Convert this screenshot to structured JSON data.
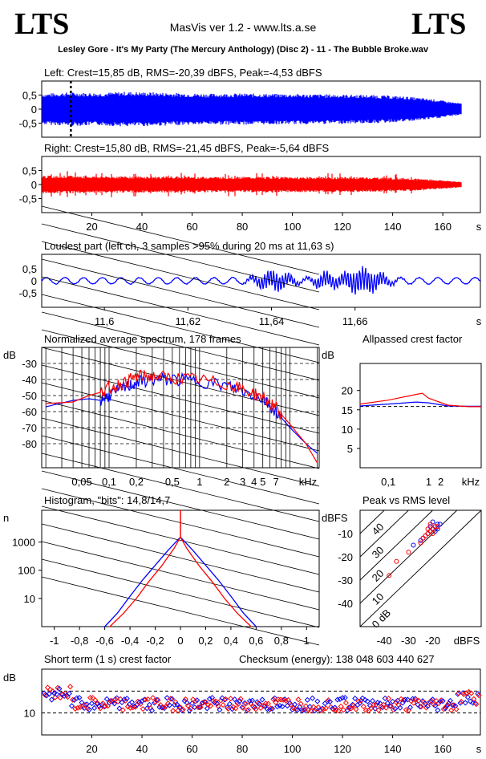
{
  "header": {
    "logo_left": "LTS",
    "logo_right": "LTS",
    "app_title": "MasVis ver 1.2 - www.lts.a.se",
    "file_name": "Lesley Gore - It's My Party (The Mercury Anthology) (Disc 2) - 11 - The Bubble Broke.wav"
  },
  "colors": {
    "left": "#0000ff",
    "right": "#ff0000"
  },
  "chart_data": [
    {
      "id": "left_waveform",
      "type": "area",
      "title": "Left: Crest=15,85 dB, RMS=-20,39 dBFS, Peak=-4,53 dBFS",
      "y_ticks": [
        "0,5",
        "0",
        "-0,5"
      ],
      "ylim": [
        -1,
        1
      ],
      "envelope": [
        0.55,
        0.6,
        0.58,
        0.62,
        0.6,
        0.57,
        0.55,
        0.56,
        0.55,
        0.54,
        0.53,
        0.52,
        0.5,
        0.45,
        0.35,
        0.2
      ],
      "marker_time_s": 11.63
    },
    {
      "id": "right_waveform",
      "type": "area",
      "title": "Right: Crest=15,80 dB, RMS=-21,45 dBFS, Peak=-5,64 dBFS",
      "y_ticks": [
        "0,5",
        "0",
        "-0,5"
      ],
      "ylim": [
        -1,
        1
      ],
      "envelope": [
        0.32,
        0.32,
        0.3,
        0.3,
        0.29,
        0.29,
        0.28,
        0.28,
        0.28,
        0.27,
        0.27,
        0.27,
        0.26,
        0.24,
        0.18,
        0.1
      ],
      "x_ticks": [
        "20",
        "40",
        "60",
        "80",
        "100",
        "120",
        "140",
        "160",
        "s"
      ],
      "xlim": [
        0,
        175
      ]
    },
    {
      "id": "loudest_part",
      "type": "line",
      "title": "Loudest part (left  ch, 3 samples >95% during 20 ms at 11,63 s)",
      "y_ticks": [
        "0,5",
        "0",
        "-0,5"
      ],
      "x_ticks": [
        "11,6",
        "11,62",
        "11,64",
        "11,66",
        "s"
      ],
      "xlim": [
        11.585,
        11.69
      ]
    },
    {
      "id": "spectrum",
      "type": "line",
      "title": "Normalized average spectrum, 178 frames",
      "ylabel": "dB",
      "y_ticks": [
        "-30",
        "-40",
        "-50",
        "-60",
        "-70",
        "-80"
      ],
      "ylim": [
        -95,
        -20
      ],
      "x_ticks": [
        "0,05",
        "0,1",
        "0,2",
        "0,5",
        "1",
        "2",
        "3",
        "4",
        "5",
        "7",
        "kHz"
      ],
      "series": [
        {
          "name": "left",
          "x": [
            0.02,
            0.04,
            0.06,
            0.08,
            0.1,
            0.15,
            0.2,
            0.3,
            0.5,
            1,
            2,
            3,
            5,
            7,
            10,
            15,
            20
          ],
          "y": [
            -57,
            -53,
            -52,
            -53,
            -50,
            -45,
            -42,
            -40,
            -40,
            -41,
            -44,
            -47,
            -52,
            -60,
            -70,
            -80,
            -86
          ]
        },
        {
          "name": "right",
          "x": [
            0.02,
            0.04,
            0.06,
            0.08,
            0.1,
            0.15,
            0.2,
            0.3,
            0.5,
            1,
            2,
            3,
            5,
            7,
            10,
            15,
            20
          ],
          "y": [
            -55,
            -54,
            -50,
            -48,
            -45,
            -42,
            -38,
            -38,
            -39,
            -40,
            -43,
            -46,
            -51,
            -58,
            -68,
            -80,
            -92
          ]
        }
      ]
    },
    {
      "id": "allpassed_crest",
      "type": "line",
      "title": "Allpassed crest factor",
      "ylabel": "dB",
      "y_ticks": [
        "20",
        "15",
        "10",
        "5"
      ],
      "ylim": [
        0,
        27
      ],
      "x_ticks": [
        "0,1",
        "1",
        "2",
        "kHz"
      ],
      "series": [
        {
          "name": "left",
          "x": [
            0.02,
            0.1,
            0.5,
            1,
            3,
            10,
            20
          ],
          "y": [
            16,
            16.5,
            17,
            16.8,
            16,
            15.9,
            15.9
          ]
        },
        {
          "name": "right",
          "x": [
            0.02,
            0.1,
            0.5,
            0.7,
            1,
            3,
            10,
            20
          ],
          "y": [
            16.5,
            17.5,
            19,
            19.3,
            18,
            16.2,
            15.8,
            15.8
          ]
        }
      ],
      "reference_line": 15.85
    },
    {
      "id": "histogram",
      "type": "line",
      "title": "Histogram, \"bits\": 14,8/14,7",
      "ylabel": "n",
      "y_ticks": [
        "1000",
        "100",
        "10"
      ],
      "x_ticks": [
        "-1",
        "-0,8",
        "-0,6",
        "-0,4",
        "-0,2",
        "0",
        "0,2",
        "0,4",
        "0,6",
        "0,8",
        "1"
      ],
      "xlim": [
        -1.1,
        1.1
      ],
      "series": [
        {
          "name": "left",
          "x": [
            -0.6,
            -0.5,
            -0.4,
            -0.3,
            -0.2,
            -0.1,
            0,
            0.1,
            0.2,
            0.3,
            0.4,
            0.5,
            0.6
          ],
          "y": [
            1,
            3,
            12,
            45,
            150,
            500,
            1500,
            500,
            150,
            45,
            12,
            3,
            1
          ]
        },
        {
          "name": "right",
          "x": [
            -0.56,
            -0.45,
            -0.35,
            -0.25,
            -0.15,
            -0.05,
            0,
            0.05,
            0.15,
            0.25,
            0.35,
            0.45,
            0.56
          ],
          "y": [
            1,
            3,
            10,
            40,
            140,
            600,
            1500,
            600,
            140,
            40,
            10,
            3,
            1
          ]
        }
      ]
    },
    {
      "id": "peak_vs_rms",
      "type": "scatter",
      "title": "Peak vs RMS level",
      "ylabel": "dBFS",
      "y_ticks": [
        "-10",
        "-20",
        "-30",
        "-40"
      ],
      "x_ticks": [
        "-40",
        "-30",
        "-20",
        "dBFS"
      ],
      "diagonal_labels": [
        "40",
        "30",
        "20",
        "10",
        "0 dB"
      ],
      "series": [
        {
          "name": "left",
          "x": [
            -20,
            -19,
            -21,
            -18,
            -22,
            -17,
            -23,
            -20,
            -19,
            -24,
            -25,
            -28,
            -21,
            -18
          ],
          "y": [
            -8,
            -7,
            -9,
            -6,
            -10,
            -6,
            -11,
            -5,
            -9,
            -12,
            -13,
            -15,
            -7,
            -8
          ]
        },
        {
          "name": "right",
          "x": [
            -21,
            -20,
            -22,
            -19,
            -23,
            -18,
            -24,
            -21,
            -20,
            -25,
            -30,
            -35,
            -38,
            -22
          ],
          "y": [
            -9,
            -8,
            -10,
            -7,
            -11,
            -7,
            -12,
            -6,
            -10,
            -14,
            -18,
            -22,
            -28,
            -8
          ]
        }
      ]
    },
    {
      "id": "short_term_crest",
      "type": "scatter",
      "title": "Short term (1 s) crest factor",
      "checksum": "Checksum (energy):   138 048 603 440 627",
      "ylabel": "dB",
      "y_ticks": [
        "10"
      ],
      "x_ticks": [
        "20",
        "40",
        "60",
        "80",
        "100",
        "120",
        "140",
        "160",
        "s"
      ],
      "xlim": [
        0,
        175
      ],
      "ylim": [
        5,
        20
      ]
    }
  ]
}
